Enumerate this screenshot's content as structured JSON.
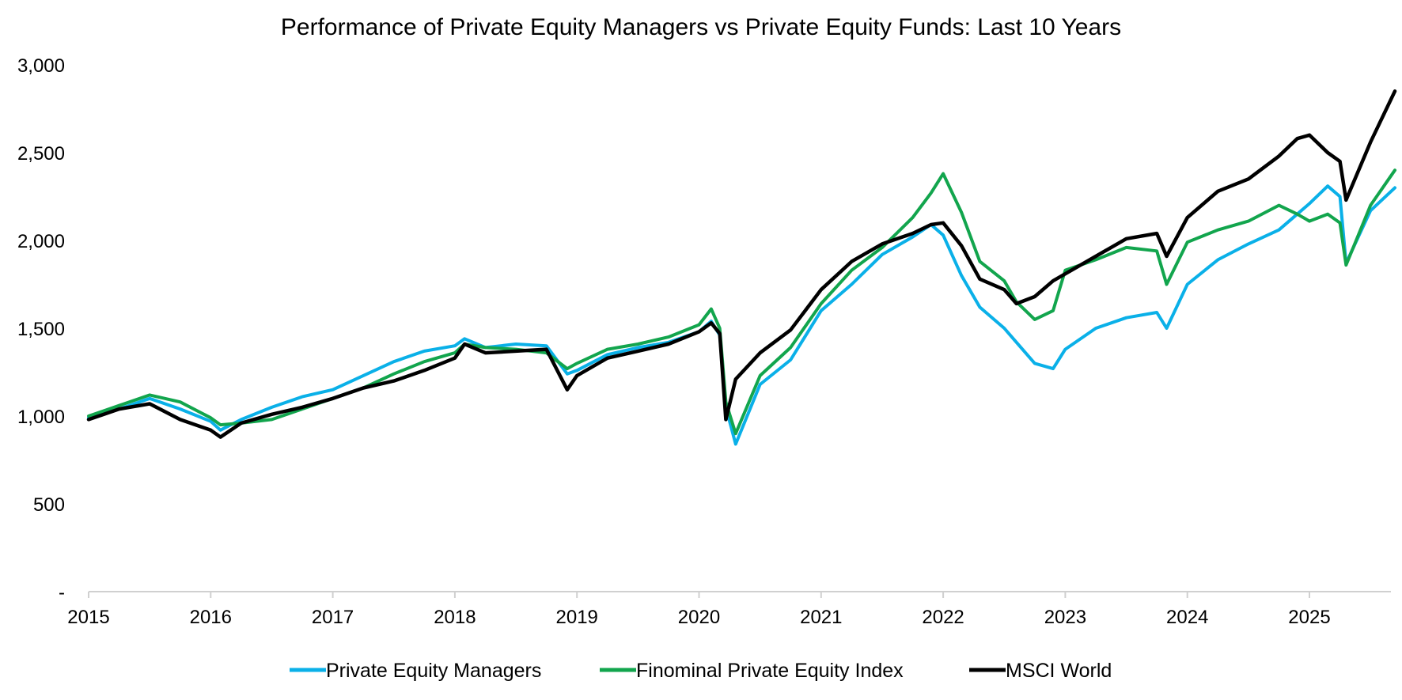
{
  "chart_data": {
    "type": "line",
    "title": "Performance of Private Equity Managers vs Private Equity Funds: Last 10 Years",
    "xlabel": "",
    "ylabel": "",
    "x_ticks": [
      "2015",
      "2016",
      "2017",
      "2018",
      "2019",
      "2020",
      "2021",
      "2022",
      "2023",
      "2024",
      "2025"
    ],
    "y_ticks": [
      {
        "value": 0,
        "label": "-"
      },
      {
        "value": 500,
        "label": "500"
      },
      {
        "value": 1000,
        "label": "1,000"
      },
      {
        "value": 1500,
        "label": "1,500"
      },
      {
        "value": 2000,
        "label": "2,000"
      },
      {
        "value": 2500,
        "label": "2,500"
      },
      {
        "value": 3000,
        "label": "3,000"
      }
    ],
    "xlim": [
      2015.0,
      2025.7
    ],
    "ylim": [
      0,
      3000
    ],
    "grid": false,
    "legend_position": "bottom",
    "series": [
      {
        "name": "Private Equity Managers",
        "color": "#0AB0E8",
        "x": [
          2015.0,
          2015.25,
          2015.5,
          2015.75,
          2016.0,
          2016.08,
          2016.25,
          2016.5,
          2016.75,
          2017.0,
          2017.25,
          2017.5,
          2017.75,
          2018.0,
          2018.08,
          2018.25,
          2018.5,
          2018.75,
          2018.92,
          2019.0,
          2019.25,
          2019.5,
          2019.75,
          2020.0,
          2020.1,
          2020.17,
          2020.22,
          2020.3,
          2020.5,
          2020.75,
          2021.0,
          2021.25,
          2021.5,
          2021.75,
          2021.9,
          2022.0,
          2022.15,
          2022.3,
          2022.5,
          2022.6,
          2022.75,
          2022.9,
          2023.0,
          2023.25,
          2023.5,
          2023.75,
          2023.83,
          2024.0,
          2024.25,
          2024.5,
          2024.75,
          2024.9,
          2025.0,
          2025.15,
          2025.25,
          2025.3,
          2025.5,
          2025.7
        ],
        "y": [
          990,
          1040,
          1100,
          1040,
          970,
          920,
          980,
          1050,
          1110,
          1150,
          1230,
          1310,
          1370,
          1400,
          1440,
          1390,
          1410,
          1400,
          1240,
          1260,
          1350,
          1390,
          1420,
          1480,
          1540,
          1460,
          1050,
          840,
          1180,
          1320,
          1600,
          1750,
          1920,
          2020,
          2090,
          2030,
          1800,
          1620,
          1500,
          1420,
          1300,
          1270,
          1380,
          1500,
          1560,
          1590,
          1500,
          1750,
          1890,
          1980,
          2060,
          2150,
          2210,
          2310,
          2250,
          1870,
          2170,
          2300
        ]
      },
      {
        "name": "Finominal Private Equity Index",
        "color": "#12A54D",
        "x": [
          2015.0,
          2015.25,
          2015.5,
          2015.75,
          2016.0,
          2016.08,
          2016.25,
          2016.5,
          2016.75,
          2017.0,
          2017.25,
          2017.5,
          2017.75,
          2018.0,
          2018.08,
          2018.25,
          2018.5,
          2018.75,
          2018.92,
          2019.0,
          2019.25,
          2019.5,
          2019.75,
          2020.0,
          2020.1,
          2020.17,
          2020.22,
          2020.3,
          2020.5,
          2020.75,
          2021.0,
          2021.25,
          2021.5,
          2021.75,
          2021.9,
          2022.0,
          2022.15,
          2022.3,
          2022.5,
          2022.6,
          2022.75,
          2022.9,
          2023.0,
          2023.25,
          2023.5,
          2023.75,
          2023.83,
          2024.0,
          2024.25,
          2024.5,
          2024.75,
          2024.9,
          2025.0,
          2025.15,
          2025.25,
          2025.3,
          2025.5,
          2025.7
        ],
        "y": [
          1000,
          1060,
          1120,
          1080,
          990,
          950,
          960,
          980,
          1040,
          1100,
          1160,
          1240,
          1310,
          1360,
          1410,
          1390,
          1380,
          1360,
          1270,
          1300,
          1380,
          1410,
          1450,
          1520,
          1610,
          1500,
          1080,
          900,
          1230,
          1390,
          1640,
          1830,
          1960,
          2130,
          2270,
          2380,
          2160,
          1880,
          1770,
          1650,
          1550,
          1600,
          1830,
          1890,
          1960,
          1940,
          1750,
          1990,
          2060,
          2110,
          2200,
          2150,
          2110,
          2150,
          2100,
          1860,
          2200,
          2400
        ]
      },
      {
        "name": "MSCI World",
        "color": "#000000",
        "x": [
          2015.0,
          2015.25,
          2015.5,
          2015.75,
          2016.0,
          2016.08,
          2016.25,
          2016.5,
          2016.75,
          2017.0,
          2017.25,
          2017.5,
          2017.75,
          2018.0,
          2018.08,
          2018.25,
          2018.5,
          2018.75,
          2018.92,
          2019.0,
          2019.25,
          2019.5,
          2019.75,
          2020.0,
          2020.1,
          2020.17,
          2020.22,
          2020.3,
          2020.5,
          2020.75,
          2021.0,
          2021.25,
          2021.5,
          2021.75,
          2021.9,
          2022.0,
          2022.15,
          2022.3,
          2022.5,
          2022.6,
          2022.75,
          2022.9,
          2023.0,
          2023.25,
          2023.5,
          2023.75,
          2023.83,
          2024.0,
          2024.25,
          2024.5,
          2024.75,
          2024.9,
          2025.0,
          2025.15,
          2025.25,
          2025.3,
          2025.5,
          2025.7
        ],
        "y": [
          980,
          1040,
          1070,
          980,
          920,
          880,
          960,
          1010,
          1050,
          1100,
          1160,
          1200,
          1260,
          1330,
          1410,
          1360,
          1370,
          1380,
          1150,
          1230,
          1330,
          1370,
          1410,
          1480,
          1530,
          1470,
          980,
          1210,
          1360,
          1490,
          1720,
          1880,
          1980,
          2040,
          2090,
          2100,
          1970,
          1780,
          1720,
          1640,
          1680,
          1770,
          1810,
          1910,
          2010,
          2040,
          1910,
          2130,
          2280,
          2350,
          2480,
          2580,
          2600,
          2500,
          2450,
          2230,
          2560,
          2850
        ]
      }
    ]
  }
}
